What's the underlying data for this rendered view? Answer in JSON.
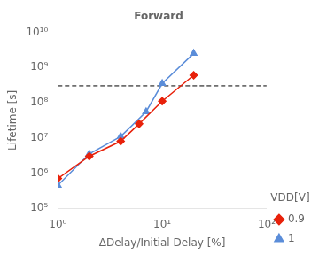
{
  "chart_data": {
    "type": "line",
    "title": "Forward",
    "xlabel": "ΔDelay/Initial Delay [%]",
    "ylabel": "Lifetime [s]",
    "log": true,
    "grid": false,
    "legend": "lower right",
    "legend_title": "VDD[V]",
    "xlim": [
      1,
      100
    ],
    "ylim": [
      100000,
      10000000000
    ],
    "xticks": [
      {
        "value": 1,
        "label": "10⁰"
      },
      {
        "value": 10,
        "label": "10¹"
      },
      {
        "value": 100,
        "label": "10²"
      }
    ],
    "yticks": [
      {
        "value": 100000,
        "label": "10⁵"
      },
      {
        "value": 1000000,
        "label": "10⁶"
      },
      {
        "value": 10000000,
        "label": "10⁷"
      },
      {
        "value": 100000000,
        "label": "10⁸"
      },
      {
        "value": 1000000000,
        "label": "10⁹"
      },
      {
        "value": 10000000000,
        "label": "10¹⁰"
      }
    ],
    "series": [
      {
        "name": "0.9",
        "color": "#e8210a",
        "marker": "diamond",
        "x": [
          1.0,
          2.0,
          4.0,
          6.0,
          10.0,
          20.0
        ],
        "values": [
          700000,
          3000000,
          8000000,
          25000000,
          110000000,
          600000000
        ]
      },
      {
        "name": "1",
        "color": "#5b8dd9",
        "marker": "triangle",
        "x": [
          1.0,
          2.0,
          4.0,
          7.0,
          10.0,
          20.0
        ],
        "values": [
          450000,
          3500000,
          11000000,
          55000000,
          350000000,
          2500000000
        ]
      }
    ],
    "reference_line": {
      "y": 300000000,
      "line_style": "dashed",
      "color": "#000000"
    }
  }
}
